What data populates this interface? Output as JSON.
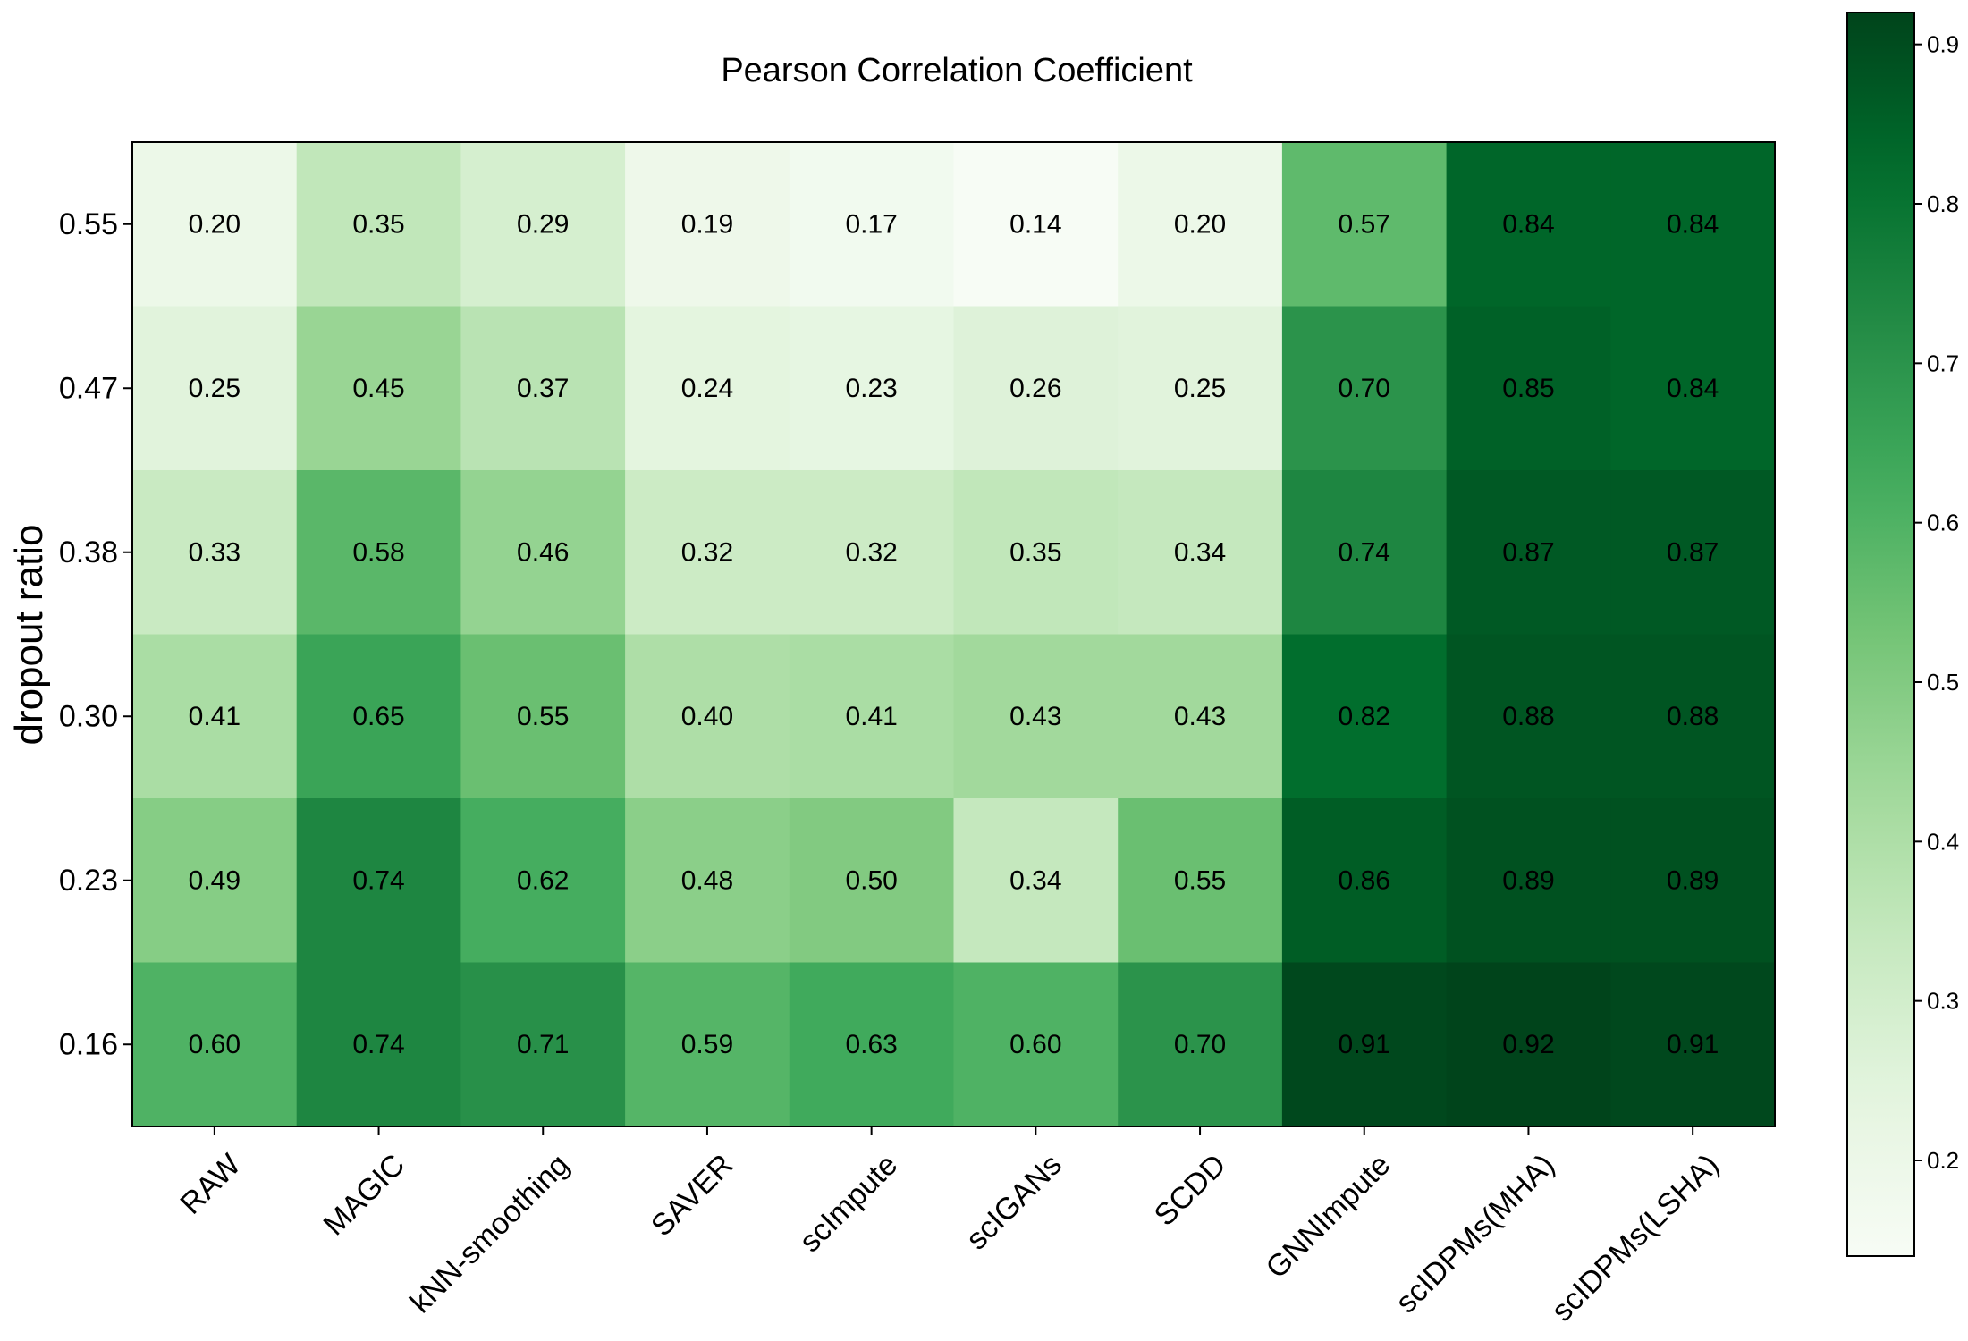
{
  "chart_data": {
    "type": "heatmap",
    "title": "Pearson Correlation Coefficient",
    "xlabel": "",
    "ylabel": "dropout ratio",
    "x_categories": [
      "RAW",
      "MAGIC",
      "kNN-smoothing",
      "SAVER",
      "scImpute",
      "scIGANs",
      "SCDD",
      "GNNImpute",
      "scIDPMs(MHA)",
      "scIDPMs(LSHA)"
    ],
    "y_categories": [
      "0.55",
      "0.47",
      "0.38",
      "0.30",
      "0.23",
      "0.16"
    ],
    "values": [
      [
        0.2,
        0.35,
        0.29,
        0.19,
        0.17,
        0.14,
        0.2,
        0.57,
        0.84,
        0.84
      ],
      [
        0.25,
        0.45,
        0.37,
        0.24,
        0.23,
        0.26,
        0.25,
        0.7,
        0.85,
        0.84
      ],
      [
        0.33,
        0.58,
        0.46,
        0.32,
        0.32,
        0.35,
        0.34,
        0.74,
        0.87,
        0.87
      ],
      [
        0.41,
        0.65,
        0.55,
        0.4,
        0.41,
        0.43,
        0.43,
        0.82,
        0.88,
        0.88
      ],
      [
        0.49,
        0.74,
        0.62,
        0.48,
        0.5,
        0.34,
        0.55,
        0.86,
        0.89,
        0.89
      ],
      [
        0.6,
        0.74,
        0.71,
        0.59,
        0.63,
        0.6,
        0.7,
        0.91,
        0.92,
        0.91
      ]
    ],
    "value_labels": [
      [
        "0.20",
        "0.35",
        "0.29",
        "0.19",
        "0.17",
        "0.14",
        "0.20",
        "0.57",
        "0.84",
        "0.84"
      ],
      [
        "0.25",
        "0.45",
        "0.37",
        "0.24",
        "0.23",
        "0.26",
        "0.25",
        "0.70",
        "0.85",
        "0.84"
      ],
      [
        "0.33",
        "0.58",
        "0.46",
        "0.32",
        "0.32",
        "0.35",
        "0.34",
        "0.74",
        "0.87",
        "0.87"
      ],
      [
        "0.41",
        "0.65",
        "0.55",
        "0.40",
        "0.41",
        "0.43",
        "0.43",
        "0.82",
        "0.88",
        "0.88"
      ],
      [
        "0.49",
        "0.74",
        "0.62",
        "0.48",
        "0.50",
        "0.34",
        "0.55",
        "0.86",
        "0.89",
        "0.89"
      ],
      [
        "0.60",
        "0.74",
        "0.71",
        "0.59",
        "0.63",
        "0.60",
        "0.70",
        "0.91",
        "0.92",
        "0.91"
      ]
    ],
    "colormap": "Greens",
    "colorbar": {
      "range": [
        0.14,
        0.92
      ],
      "ticks": [
        0.2,
        0.3,
        0.4,
        0.5,
        0.6,
        0.7,
        0.8,
        0.9
      ],
      "tick_labels": [
        "0.2",
        "0.3",
        "0.4",
        "0.5",
        "0.6",
        "0.7",
        "0.8",
        "0.9"
      ],
      "placement": "right"
    },
    "grid": false
  }
}
